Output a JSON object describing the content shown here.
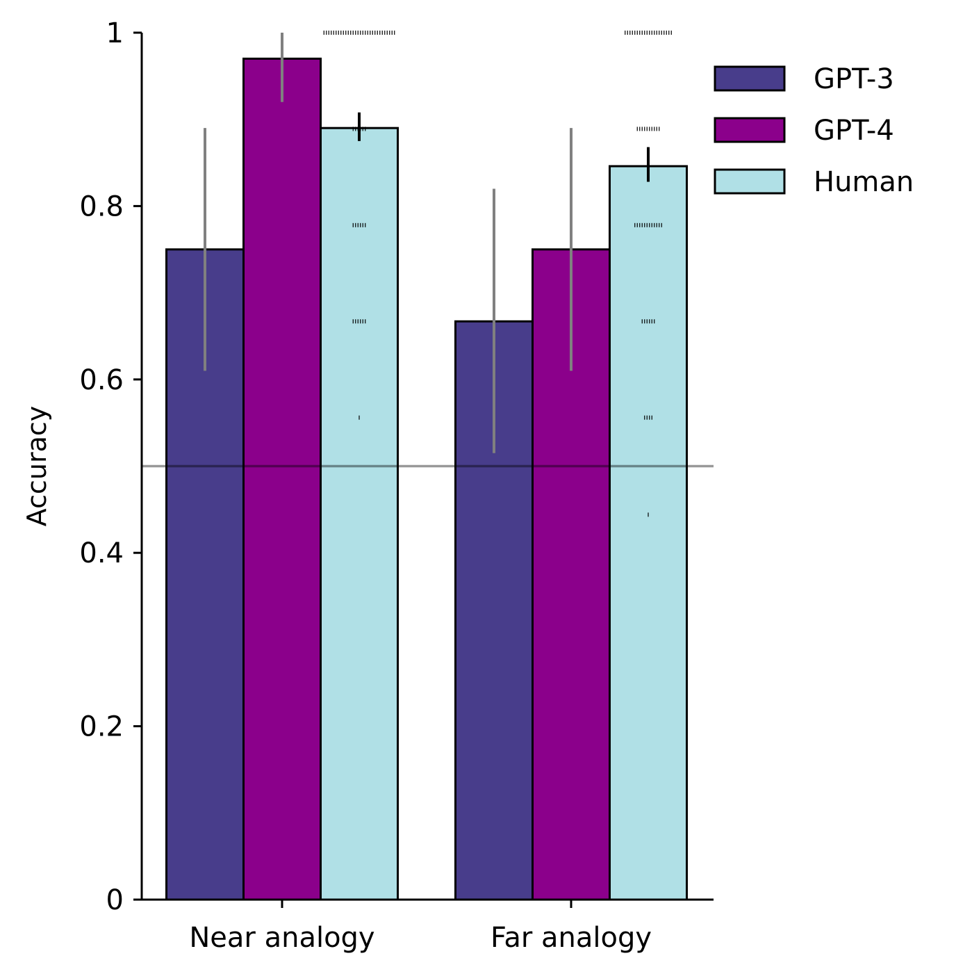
{
  "chart_data": {
    "type": "bar",
    "title": "",
    "xlabel": "",
    "ylabel": "Accuracy",
    "ylim": [
      0,
      1
    ],
    "yticks": [
      0,
      0.2,
      0.4,
      0.6,
      0.8,
      1
    ],
    "ytick_labels": [
      "0",
      "0.2",
      "0.4",
      "0.6",
      "0.8",
      "1"
    ],
    "categories": [
      "Near analogy",
      "Far analogy"
    ],
    "chance_level": 0.5,
    "legend_position": "top-right",
    "series": [
      {
        "name": "GPT-3",
        "color": "#483D8B",
        "values": [
          0.75,
          0.667
        ],
        "err_low": [
          0.61,
          0.515
        ],
        "err_high": [
          0.89,
          0.82
        ],
        "err_color": "#808080"
      },
      {
        "name": "GPT-4",
        "color": "#8B008B",
        "values": [
          0.97,
          0.75
        ],
        "err_low": [
          0.92,
          0.61
        ],
        "err_high": [
          1.0,
          0.89
        ],
        "err_color": "#808080"
      },
      {
        "name": "Human",
        "color": "#B0E0E6",
        "values": [
          0.89,
          0.846
        ],
        "err_low": [
          0.875,
          0.828
        ],
        "err_high": [
          0.908,
          0.868
        ],
        "err_color": "#000000"
      }
    ],
    "individual_human_scores": [
      [
        {
          "value": 1.0,
          "count": 30
        },
        {
          "value": 0.889,
          "count": 6
        },
        {
          "value": 0.778,
          "count": 6
        },
        {
          "value": 0.667,
          "count": 6
        },
        {
          "value": 0.556,
          "count": 1
        }
      ],
      [
        {
          "value": 1.0,
          "count": 20
        },
        {
          "value": 0.889,
          "count": 10
        },
        {
          "value": 0.778,
          "count": 12
        },
        {
          "value": 0.667,
          "count": 6
        },
        {
          "value": 0.556,
          "count": 4
        },
        {
          "value": 0.444,
          "count": 1
        }
      ]
    ]
  }
}
